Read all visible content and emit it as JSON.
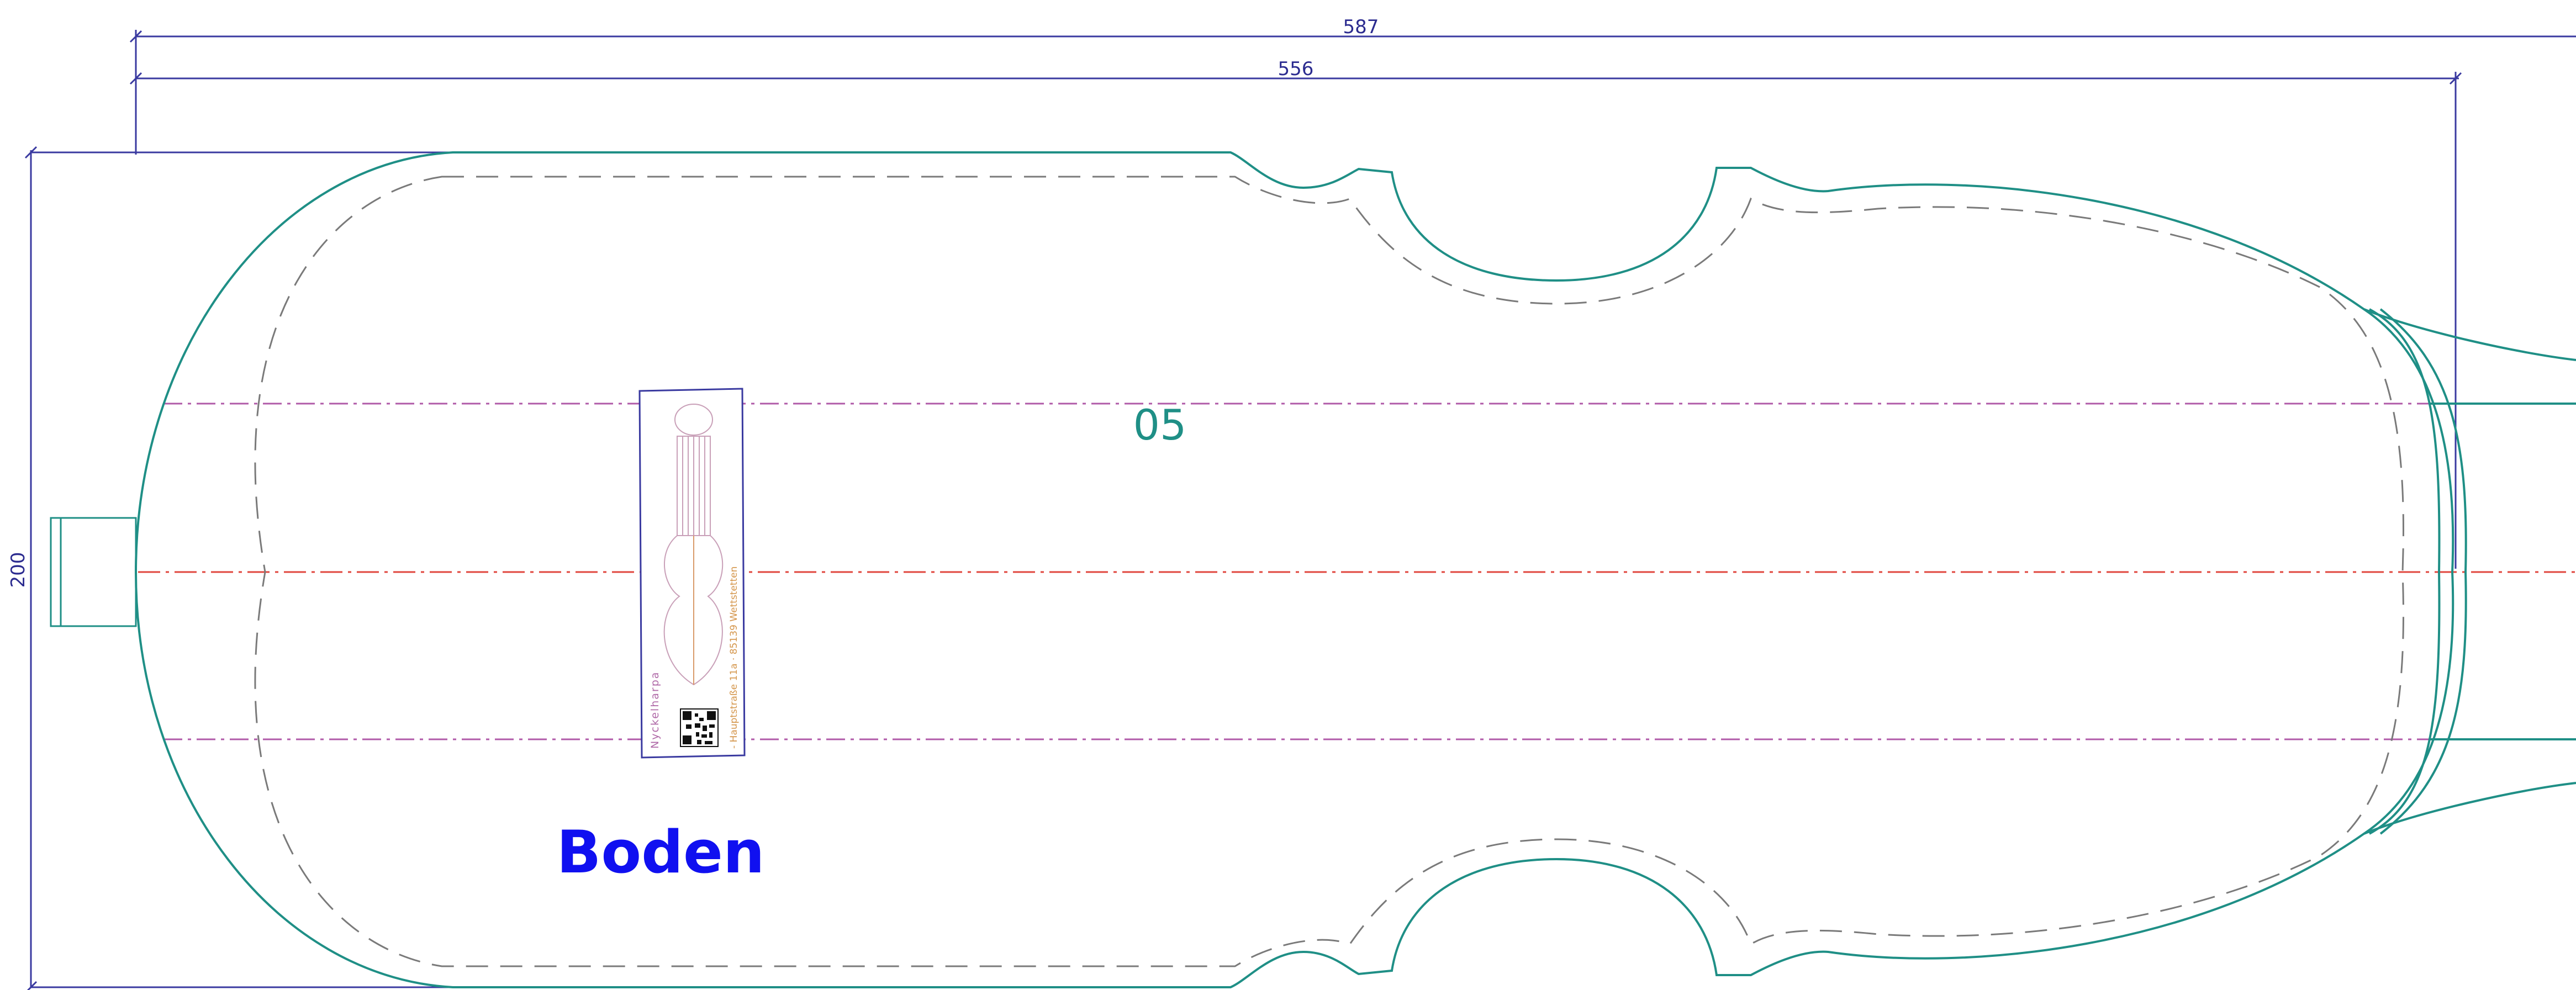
{
  "drawing": {
    "dimensions": {
      "overall_length": "587",
      "body_length": "556",
      "width": "200"
    },
    "part_number": "05",
    "part_name": "Boden",
    "label": {
      "title": "Nyckelharpa",
      "address": "- Hauptstraße 11a · 85139 Wettstetten"
    },
    "colors": {
      "outline": "#1f8f86",
      "dimension": "#3a3aa0",
      "centerline": "#e0463c",
      "guideline": "#b05aa8",
      "dashed_inner": "#7a7a7a",
      "part_name": "#1010f0"
    }
  }
}
